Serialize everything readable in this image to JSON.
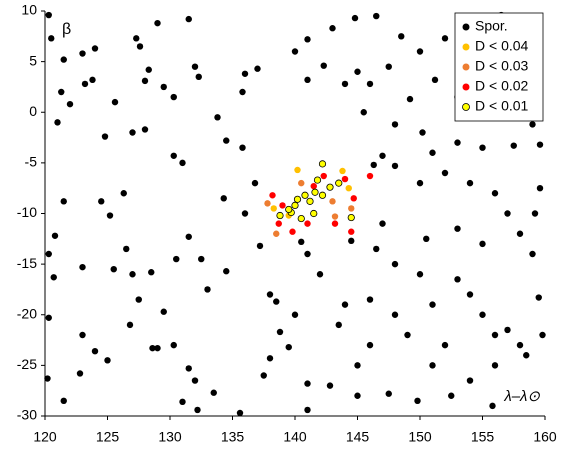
{
  "chart_data": {
    "type": "scatter",
    "ylabel": "β",
    "xlabel": "λ–λ⊙",
    "xlim": [
      120,
      160
    ],
    "xticks": [
      120,
      125,
      130,
      135,
      140,
      145,
      150,
      155,
      160
    ],
    "ylim": [
      -30,
      10
    ],
    "yticks": [
      -30,
      -25,
      -20,
      -15,
      -10,
      -5,
      0,
      5,
      10
    ],
    "grid": false,
    "legend": "upper right",
    "series": [
      {
        "name": "Spor.",
        "color": "#000000",
        "x": [
          120.3,
          120.5,
          121.5,
          121.3,
          122,
          123,
          124,
          123.2,
          123.8,
          127.3,
          127.6,
          129,
          131.5,
          132,
          132.3,
          128.3,
          128,
          129.5,
          130.3,
          125.6,
          121,
          124.8,
          127,
          130.3,
          131,
          128,
          133.8,
          134.5,
          135.8,
          137,
          136,
          135.8,
          121.5,
          120.8,
          120.3,
          120.7,
          123,
          124.5,
          125.2,
          126.3,
          126.5,
          128.5,
          129.5,
          130.5,
          131.5,
          132.5,
          134.5,
          133,
          127,
          125.5,
          127.5,
          128.6,
          129,
          124,
          125,
          126.8,
          122.8,
          121.5,
          120.2,
          120.3,
          123,
          130.3,
          131.5,
          132,
          131,
          132.2,
          133.5,
          135.6,
          137.5,
          138,
          138.8,
          140,
          138,
          137.2,
          136,
          134.3,
          136.8,
          138.5,
          139.5,
          141,
          142.8,
          145,
          145,
          147.5,
          149.8,
          151,
          152,
          149,
          148,
          146,
          144,
          142,
          141,
          140.5,
          144.5,
          147,
          146.5,
          148,
          150,
          151,
          153,
          154,
          155,
          156,
          157,
          158,
          159.5,
          159,
          158,
          157,
          156,
          154,
          152,
          150,
          148,
          146.3,
          147,
          151,
          153,
          155,
          157.5,
          159.6,
          159,
          156.5,
          154.5,
          153,
          150.2,
          148,
          145.5,
          146,
          144,
          145,
          142.3,
          141,
          140,
          141,
          143,
          144.8,
          146.5,
          148.5,
          150,
          152,
          154,
          156.5,
          158.5,
          159.5,
          157,
          155,
          151.2,
          147.5,
          149.2,
          157.5,
          159.6,
          159.2,
          159.8,
          158.5,
          156,
          154,
          155.8,
          152.5,
          141,
          146,
          143.5,
          150.5,
          153,
          155
        ],
        "values": [
          9.6,
          7.3,
          5.2,
          2.0,
          0.8,
          5.8,
          6.3,
          2.8,
          3.2,
          7.3,
          6.5,
          8.8,
          9.2,
          4.5,
          3.5,
          4.2,
          3.1,
          2.5,
          1.5,
          1.0,
          -1,
          -2.4,
          -2,
          -4.3,
          -5,
          -1.7,
          -0.5,
          -2.8,
          2,
          4.3,
          3.8,
          -3.5,
          -8.8,
          -12.2,
          -14,
          -16.3,
          -15.3,
          -8.8,
          -10.2,
          -8,
          -13.5,
          -15.8,
          -19.7,
          -14.5,
          -12.3,
          -14.5,
          -15.7,
          -17.5,
          -16,
          -15.5,
          -18.5,
          -23.3,
          -23.3,
          -23.6,
          -24.5,
          -21,
          -25.8,
          -28.5,
          -26.3,
          -20.3,
          -22,
          -23,
          -25.3,
          -26.5,
          -28.6,
          -29.4,
          -27.7,
          -29.7,
          -26,
          -24.3,
          -21.7,
          -20,
          -18,
          -13.2,
          -10,
          -8.5,
          -7,
          -18.7,
          -23.2,
          -26.8,
          -27,
          -25,
          -28,
          -27.8,
          -28.5,
          -25,
          -23,
          -22,
          -20,
          -18.5,
          -19,
          -16,
          -14,
          -12.8,
          -12.7,
          -11,
          -13.5,
          -15,
          -16,
          -19,
          -16.5,
          -18,
          -20,
          -22,
          -21.5,
          -23,
          -18.3,
          -14,
          -12,
          -10,
          -8,
          -7,
          -6,
          -7,
          -5.3,
          -5.2,
          -4.3,
          -4,
          -3,
          -3.5,
          -3.3,
          -3.2,
          -1.2,
          0.3,
          0.8,
          1.5,
          -2,
          -1.2,
          0,
          2.8,
          2.8,
          4,
          4.6,
          3.2,
          6,
          7.2,
          8.3,
          9.3,
          9.5,
          7.5,
          6,
          7.3,
          9.3,
          9.6,
          8.8,
          5.5,
          6.3,
          4,
          3.2,
          4.5,
          1.3,
          1.8,
          -7.5,
          -10,
          -22,
          -24,
          -25,
          -26.5,
          -29,
          -28,
          -29.4,
          -23,
          -21,
          -12.5,
          -11.5,
          -13
        ]
      },
      {
        "name": "D < 0.04",
        "color": "#ffc000",
        "x": [
          140.2,
          138.3,
          143.8,
          139.5,
          144.3
        ],
        "values": [
          -5.7,
          -9.5,
          -5.8,
          -10.2,
          -7.5
        ]
      },
      {
        "name": "D < 0.03",
        "color": "#ed7d31",
        "x": [
          138.5,
          137.8,
          143.2,
          144.5,
          140.5,
          143
        ],
        "values": [
          -12,
          -9,
          -10.3,
          -9.5,
          -7,
          -8.8
        ]
      },
      {
        "name": "D < 0.02",
        "color": "#ff0000",
        "x": [
          138.2,
          139,
          139.8,
          141,
          142.3,
          143.2,
          144,
          146,
          144.7,
          138.7,
          141.5,
          144.5
        ],
        "values": [
          -8.2,
          -9.2,
          -11.8,
          -11,
          -6.3,
          -11,
          -6.6,
          -6.3,
          -8.5,
          -11,
          -7.3,
          -11.8
        ]
      },
      {
        "name": "D < 0.01",
        "color": "#ffff00",
        "edgecolor": "#000000",
        "x": [
          142.2,
          141.8,
          141.6,
          140.8,
          140.2,
          140,
          139.7,
          141.2,
          142.2,
          142.8,
          143.5,
          144.5,
          139.5,
          141.5,
          140.5,
          138.8
        ],
        "values": [
          -5.1,
          -6.7,
          -7.9,
          -8.2,
          -8.6,
          -9.2,
          -9.9,
          -8.8,
          -8.2,
          -7.4,
          -7.0,
          -10.4,
          -9.6,
          -10,
          -10.5,
          -10.2
        ]
      }
    ]
  }
}
